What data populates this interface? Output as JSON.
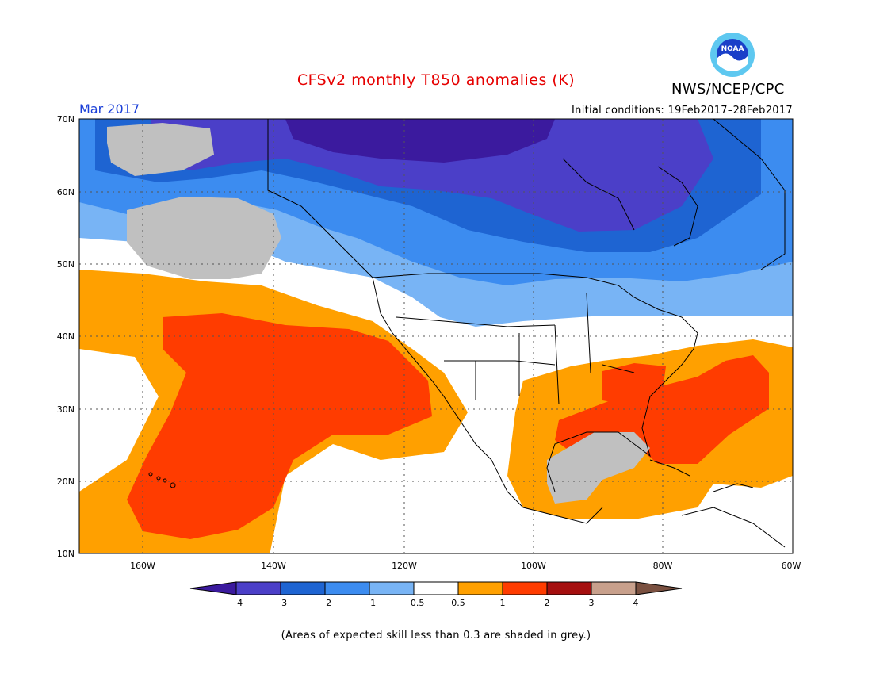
{
  "title": "CFSv2 monthly T850 anomalies (K)",
  "agency": "NWS/NCEP/CPC",
  "logo_text": "NOAA",
  "period": "Mar 2017",
  "initial_conditions": "Initial conditions: 19Feb2017–28Feb2017",
  "footnote": "(Areas of expected skill less than 0.3 are shaded in grey.)",
  "map": {
    "lat_labels": [
      "70N",
      "60N",
      "50N",
      "40N",
      "30N",
      "20N",
      "10N"
    ],
    "lon_labels": [
      "160W",
      "140W",
      "120W",
      "100W",
      "80W",
      "60W"
    ],
    "low_skill_color": "#c0c0c0"
  },
  "colorbar": {
    "labels": [
      "−4",
      "−3",
      "−2",
      "−1",
      "−0.5",
      "0.5",
      "1",
      "2",
      "3",
      "4"
    ],
    "colors": [
      "#3b1a9e",
      "#4b3fc8",
      "#1e64d2",
      "#3c8cf0",
      "#78b4f5",
      "#ffffff",
      "#ffa000",
      "#ff3c00",
      "#a50f0f",
      "#c8a08c",
      "#7a5040"
    ],
    "units": "K"
  }
}
